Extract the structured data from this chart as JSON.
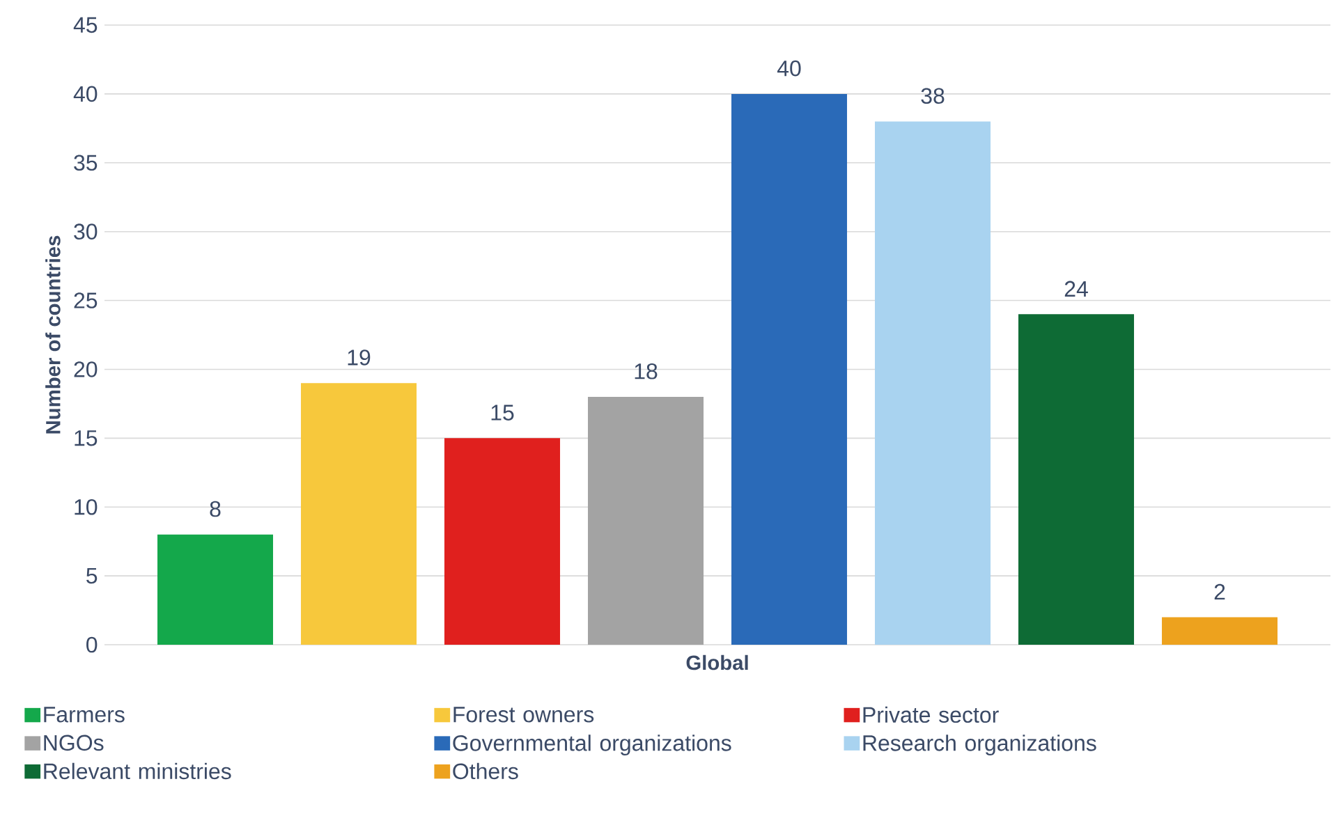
{
  "chart_data": {
    "type": "bar",
    "categories": [
      "Global"
    ],
    "ylabel": "Number of countries",
    "series": [
      {
        "name": "Farmers",
        "color": "#14a84b",
        "values": [
          8
        ]
      },
      {
        "name": "Forest owners",
        "color": "#f7c83c",
        "values": [
          19
        ]
      },
      {
        "name": "Private sector",
        "color": "#e0201e",
        "values": [
          15
        ]
      },
      {
        "name": "NGOs",
        "color": "#a3a3a3",
        "values": [
          18
        ]
      },
      {
        "name": "Governmental organizations",
        "color": "#2a6ab8",
        "values": [
          40
        ]
      },
      {
        "name": "Research organizations",
        "color": "#a9d3f0",
        "values": [
          38
        ]
      },
      {
        "name": "Relevant ministries",
        "color": "#0e6b35",
        "values": [
          24
        ]
      },
      {
        "name": "Others",
        "color": "#eda21e",
        "values": [
          2
        ]
      }
    ],
    "ylim": [
      0,
      45
    ],
    "yticks": [
      0,
      5,
      10,
      15,
      20,
      25,
      30,
      35,
      40,
      45
    ],
    "grid": "y",
    "legend": "bottom",
    "data_labels": true
  }
}
